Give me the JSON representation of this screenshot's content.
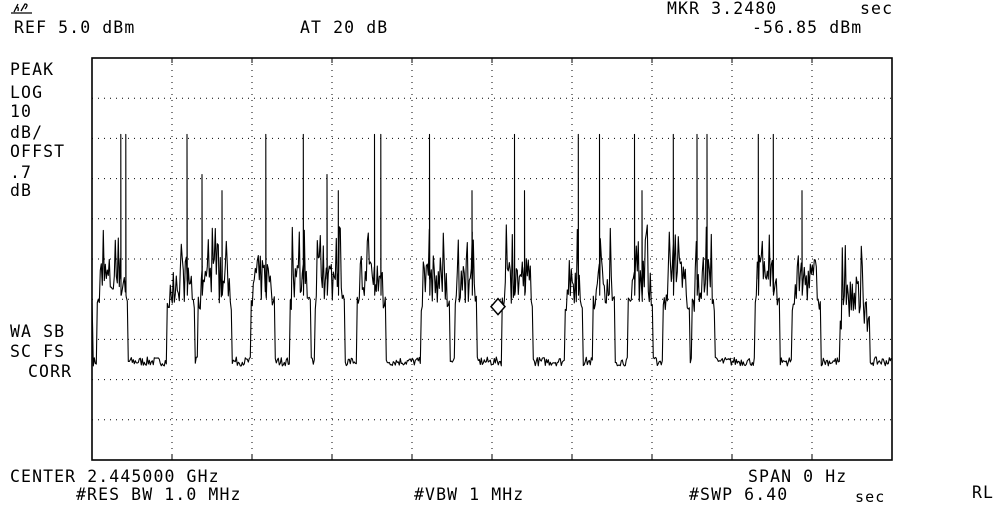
{
  "header": {
    "logo_text": "hp",
    "ref_level": "REF 5.0 dBm",
    "attenuation": "AT 20 dB",
    "marker_time_label": "MKR 3.2480",
    "marker_time_unit": "sec",
    "marker_level": "-56.85 dBm"
  },
  "left_panel": {
    "detector": "PEAK",
    "scale_lines": [
      "LOG",
      "10",
      "dB/",
      "OFFST",
      ".7",
      "dB"
    ],
    "status_lines": [
      "WA SB",
      "SC FS",
      "CORR"
    ]
  },
  "footer": {
    "center": "CENTER 2.445000 GHz",
    "span": "SPAN 0 Hz",
    "res_bw": "#RES BW 1.0 MHz",
    "vbw": "#VBW 1 MHz",
    "sweep": "#SWP 6.40",
    "sweep_unit": "sec",
    "rl_label": "RL"
  },
  "chart_data": {
    "type": "line",
    "x_axis": "time",
    "x_range_sec": [
      0,
      6.4
    ],
    "y_range_dBm": [
      -95,
      5
    ],
    "grid": true,
    "grid_divisions": {
      "x": 10,
      "y": 10
    },
    "marker": {
      "x_sec": 3.248,
      "y_dBm": -56.85
    },
    "series": [
      {
        "bursts": [
          {
            "start": 0.04,
            "end": 0.29,
            "body": -50,
            "spikes": [
              [
                0.23,
                -14
              ],
              [
                0.27,
                -14
              ]
            ]
          },
          {
            "start": 0.6,
            "end": 0.82,
            "body": -50,
            "spikes": [
              [
                0.76,
                -14
              ]
            ]
          },
          {
            "start": 0.85,
            "end": 1.12,
            "body": -50,
            "spikes": [
              [
                0.88,
                -24
              ],
              [
                1.04,
                -28
              ]
            ]
          },
          {
            "start": 1.27,
            "end": 1.46,
            "body": -50,
            "spikes": [
              [
                1.39,
                -14
              ]
            ]
          },
          {
            "start": 1.58,
            "end": 1.75,
            "body": -50,
            "spikes": [
              [
                1.69,
                -14
              ]
            ]
          },
          {
            "start": 1.78,
            "end": 2.02,
            "body": -50,
            "spikes": [
              [
                1.88,
                -24
              ],
              [
                1.97,
                -28
              ]
            ]
          },
          {
            "start": 2.12,
            "end": 2.35,
            "body": -50,
            "spikes": [
              [
                2.26,
                -14
              ],
              [
                2.31,
                -14
              ]
            ]
          },
          {
            "start": 2.63,
            "end": 2.86,
            "body": -50,
            "spikes": [
              [
                2.7,
                -14
              ]
            ]
          },
          {
            "start": 2.9,
            "end": 3.08,
            "body": -50,
            "spikes": [
              [
                3.04,
                -28
              ]
            ]
          },
          {
            "start": 3.28,
            "end": 3.53,
            "body": -50,
            "spikes": [
              [
                3.38,
                -14
              ],
              [
                3.46,
                -28
              ]
            ]
          },
          {
            "start": 3.78,
            "end": 3.93,
            "body": -50,
            "spikes": [
              [
                3.89,
                -14
              ]
            ]
          },
          {
            "start": 4.01,
            "end": 4.18,
            "body": -50,
            "spikes": [
              [
                4.06,
                -14
              ]
            ]
          },
          {
            "start": 4.29,
            "end": 4.49,
            "body": -50,
            "spikes": [
              [
                4.34,
                -14
              ],
              [
                4.4,
                -28
              ]
            ]
          },
          {
            "start": 4.57,
            "end": 4.78,
            "body": -50,
            "spikes": [
              [
                4.65,
                -14
              ]
            ]
          },
          {
            "start": 4.8,
            "end": 4.98,
            "body": -50,
            "spikes": [
              [
                4.84,
                -14
              ],
              [
                4.92,
                -14
              ]
            ]
          },
          {
            "start": 5.3,
            "end": 5.5,
            "body": -50,
            "spikes": [
              [
                5.33,
                -14
              ],
              [
                5.45,
                -14
              ]
            ]
          },
          {
            "start": 5.6,
            "end": 5.83,
            "body": -50,
            "spikes": [
              [
                5.68,
                -28
              ]
            ]
          },
          {
            "start": 5.98,
            "end": 6.22,
            "body": -55,
            "spikes": []
          }
        ],
        "noise_floor_dBm": -70.5
      }
    ]
  }
}
